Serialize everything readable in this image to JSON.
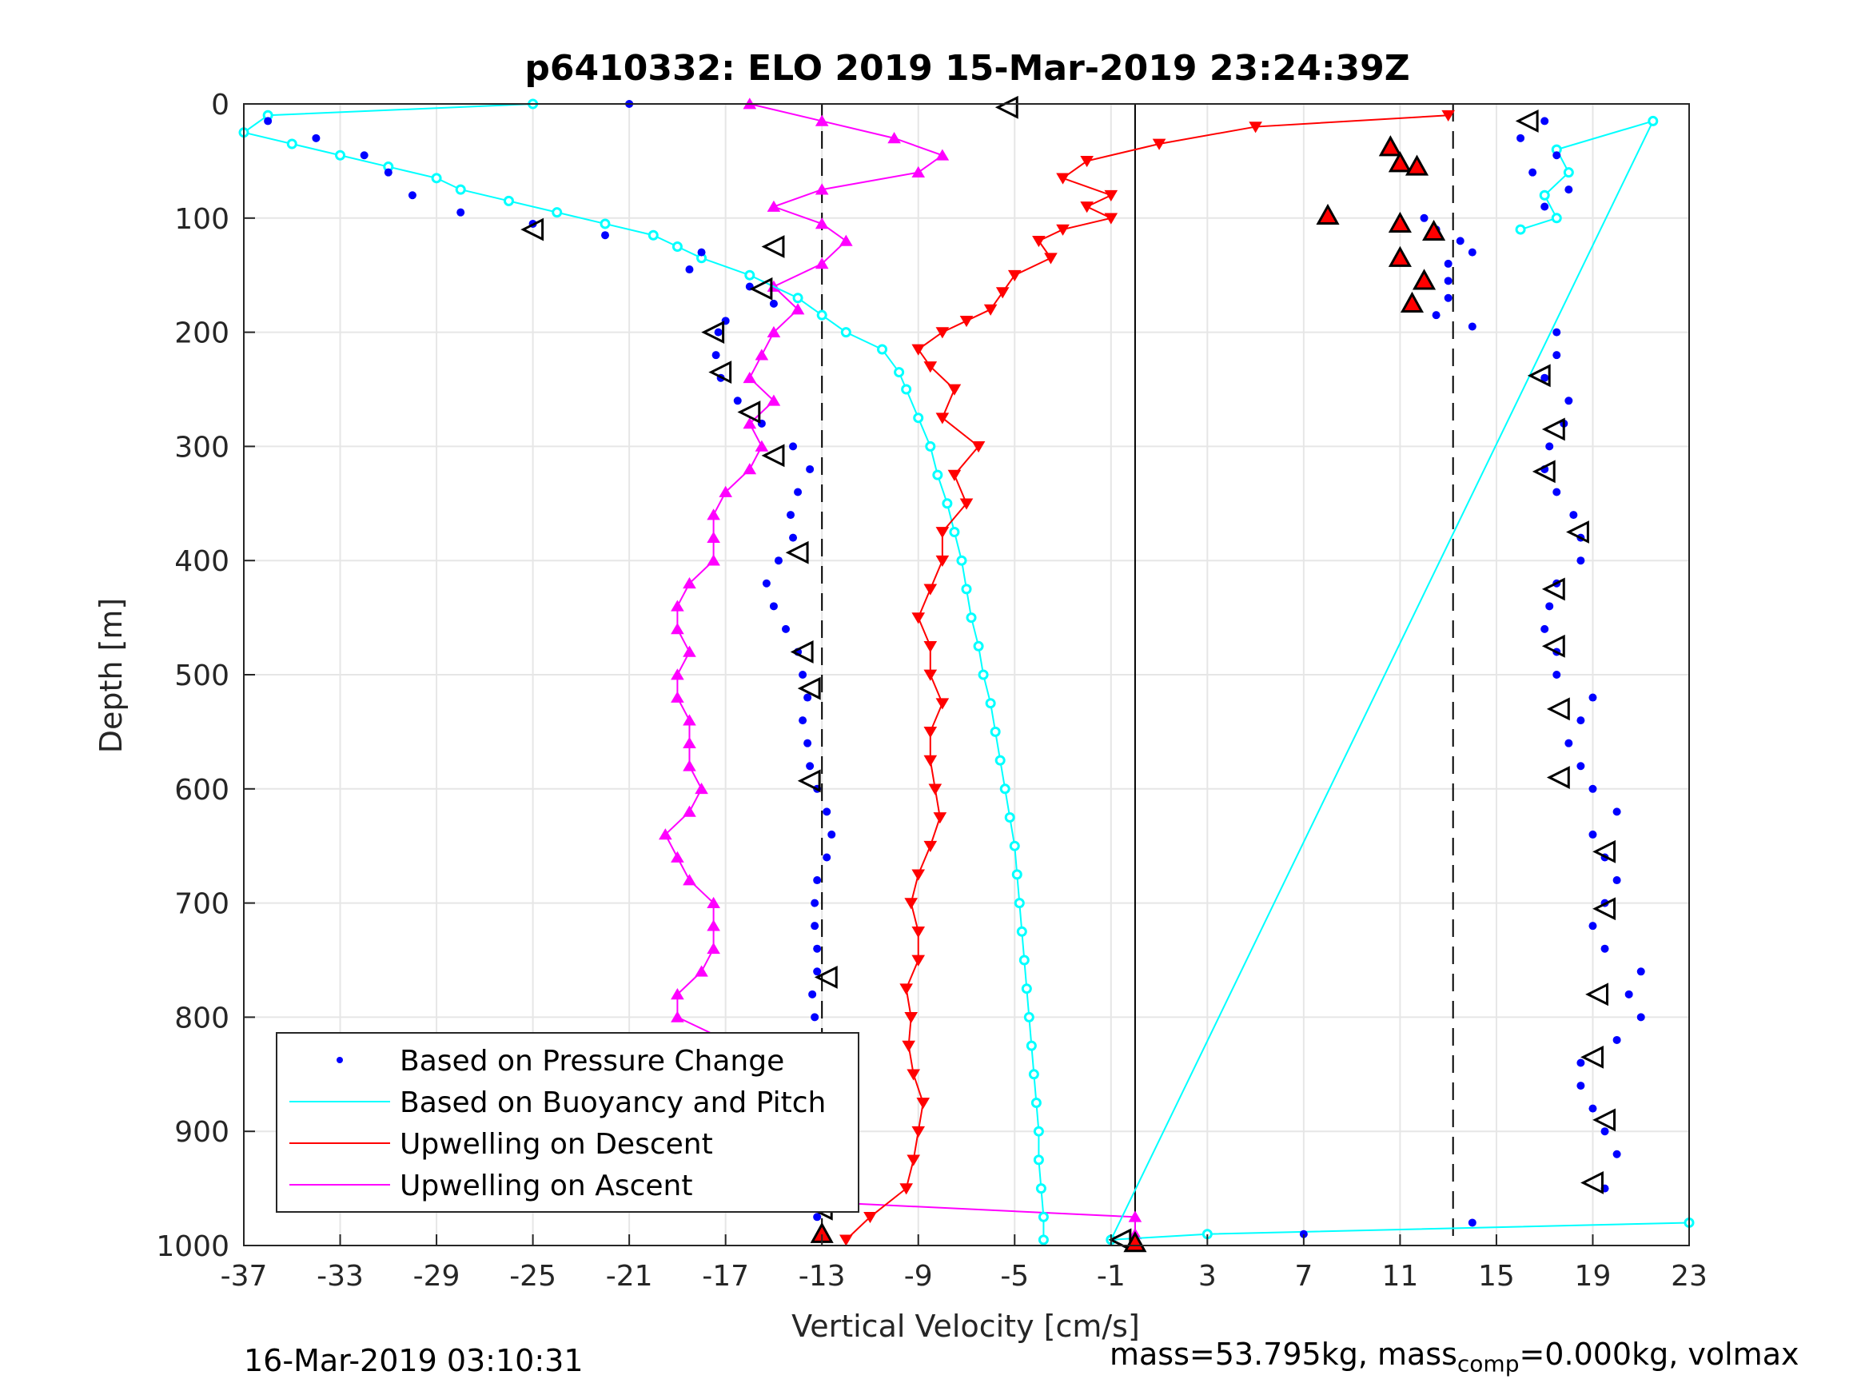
{
  "chart_data": {
    "type": "scatter",
    "title": "p6410332: ELO 2019 15-Mar-2019 23:24:39Z",
    "xlabel": "Vertical Velocity [cm/s]",
    "ylabel": "Depth [m]",
    "xlim": [
      -37,
      23
    ],
    "ylim": [
      0,
      1000
    ],
    "y_reversed": true,
    "xticks": [
      -37,
      -33,
      -29,
      -25,
      -21,
      -17,
      -13,
      -9,
      -5,
      -1,
      3,
      7,
      11,
      15,
      19,
      23
    ],
    "yticks": [
      0,
      100,
      200,
      300,
      400,
      500,
      600,
      700,
      800,
      900,
      1000
    ],
    "grid": true,
    "legend_position": "bottom-left",
    "vertical_lines": [
      {
        "x": -13,
        "style": "dashed"
      },
      {
        "x": 0,
        "style": "solid"
      },
      {
        "x": 13.2,
        "style": "dashed"
      }
    ],
    "series": [
      {
        "name": "Based on Pressure Change",
        "color": "#0000ff",
        "marker": "dot",
        "descent": {
          "depth": [
            0,
            15,
            30,
            45,
            60,
            80,
            95,
            105,
            115,
            130,
            145,
            160,
            175,
            190,
            200,
            220,
            240,
            260,
            280,
            300,
            320,
            340,
            360,
            380,
            400,
            420,
            440,
            460,
            480,
            500,
            520,
            540,
            560,
            580,
            600,
            620,
            640,
            660,
            680,
            700,
            720,
            740,
            760,
            780,
            800,
            820,
            840,
            860,
            880,
            900,
            920,
            940,
            960,
            975,
            990
          ],
          "velocity": [
            -21,
            -36,
            -34,
            -32,
            -31,
            -30,
            -28,
            -25,
            -22,
            -18,
            -18.5,
            -16,
            -15,
            -17,
            -17.3,
            -17.4,
            -17.2,
            -16.5,
            -15.5,
            -14.2,
            -13.5,
            -14,
            -14.3,
            -14.2,
            -14.8,
            -15.3,
            -15,
            -14.5,
            -14,
            -13.8,
            -13.6,
            -13.8,
            -13.6,
            -13.5,
            -13.2,
            -12.8,
            -12.6,
            -12.8,
            -13.2,
            -13.3,
            -13.3,
            -13.2,
            -13.2,
            -13.4,
            -13.3,
            -13.3,
            -13,
            -12.5,
            -12.4,
            -12.5,
            -12.4,
            -12.6,
            -13,
            -13.2,
            -13
          ]
        },
        "ascent": {
          "depth": [
            990,
            980,
            950,
            920,
            900,
            880,
            860,
            840,
            820,
            800,
            780,
            760,
            740,
            720,
            700,
            680,
            660,
            640,
            620,
            600,
            580,
            560,
            540,
            520,
            500,
            480,
            460,
            440,
            420,
            400,
            380,
            360,
            340,
            320,
            300,
            280,
            260,
            240,
            220,
            200,
            195,
            185,
            170,
            155,
            140,
            130,
            120,
            110,
            100,
            90,
            75,
            60,
            45,
            30,
            15
          ],
          "velocity": [
            7,
            14,
            19.5,
            20,
            19.5,
            19,
            18.5,
            18.5,
            20,
            21,
            20.5,
            21,
            19.5,
            19,
            19.5,
            20,
            19.5,
            19,
            20,
            19,
            18.5,
            18,
            18.5,
            19,
            17.5,
            17.5,
            17,
            17.2,
            17.5,
            18.5,
            18.5,
            18.2,
            17.5,
            17,
            17.2,
            17.8,
            18,
            17,
            17.5,
            17.5,
            14,
            12.5,
            13,
            13,
            13,
            14,
            13.5,
            12.5,
            12,
            17,
            18,
            16.5,
            17.5,
            16,
            17
          ]
        }
      },
      {
        "name": "Based on Buoyancy and Pitch",
        "color": "#00ffff",
        "marker": "open-circle",
        "descent": {
          "depth": [
            0,
            10,
            25,
            35,
            45,
            55,
            65,
            75,
            85,
            95,
            105,
            115,
            125,
            135,
            150,
            170,
            185,
            200,
            215,
            235,
            250,
            275,
            300,
            325,
            350,
            375,
            400,
            425,
            450,
            475,
            500,
            525,
            550,
            575,
            600,
            625,
            650,
            675,
            700,
            725,
            750,
            775,
            800,
            825,
            850,
            875,
            900,
            925,
            950,
            975,
            995
          ],
          "velocity": [
            -25,
            -36,
            -37,
            -35,
            -33,
            -31,
            -29,
            -28,
            -26,
            -24,
            -22,
            -20,
            -19,
            -18,
            -16,
            -14,
            -13,
            -12,
            -10.5,
            -9.8,
            -9.5,
            -9,
            -8.5,
            -8.2,
            -7.8,
            -7.5,
            -7.2,
            -7,
            -6.8,
            -6.5,
            -6.3,
            -6,
            -5.8,
            -5.6,
            -5.4,
            -5.2,
            -5,
            -4.9,
            -4.8,
            -4.7,
            -4.6,
            -4.5,
            -4.4,
            -4.3,
            -4.2,
            -4.1,
            -4,
            -4,
            -3.9,
            -3.8,
            -3.8
          ]
        },
        "ascent": {
          "depth": [
            980,
            990,
            995,
            15,
            40,
            60,
            80,
            100,
            110
          ],
          "velocity": [
            23,
            3,
            -1,
            21.5,
            17.5,
            18,
            17,
            17.5,
            16
          ]
        }
      },
      {
        "name": "Upwelling on Descent",
        "color": "#ff0000",
        "marker": "triangle-down",
        "depth": [
          10,
          20,
          35,
          50,
          65,
          80,
          90,
          100,
          110,
          120,
          135,
          150,
          165,
          180,
          190,
          200,
          215,
          230,
          250,
          275,
          300,
          325,
          350,
          375,
          400,
          425,
          450,
          475,
          500,
          525,
          550,
          575,
          600,
          625,
          650,
          675,
          700,
          725,
          750,
          775,
          800,
          825,
          850,
          875,
          900,
          925,
          950,
          975,
          995
        ],
        "velocity": [
          13,
          5,
          1,
          -2,
          -3,
          -1,
          -2,
          -1,
          -3,
          -4,
          -3.5,
          -5,
          -5.5,
          -6,
          -7,
          -8,
          -9,
          -8.5,
          -7.5,
          -8,
          -6.5,
          -7.5,
          -7,
          -8,
          -8,
          -8.5,
          -9,
          -8.5,
          -8.5,
          -8,
          -8.5,
          -8.5,
          -8.3,
          -8.1,
          -8.5,
          -9,
          -9.3,
          -9,
          -9,
          -9.5,
          -9.3,
          -9.4,
          -9.2,
          -8.8,
          -9,
          -9.2,
          -9.5,
          -11,
          -12
        ]
      },
      {
        "name": "Upwelling on Ascent",
        "color": "#ff00ff",
        "marker": "triangle-up",
        "depth": [
          0,
          15,
          30,
          45,
          60,
          75,
          90,
          105,
          120,
          140,
          160,
          180,
          200,
          220,
          240,
          260,
          280,
          300,
          320,
          340,
          360,
          380,
          400,
          420,
          440,
          460,
          480,
          500,
          520,
          540,
          560,
          580,
          600,
          620,
          640,
          660,
          680,
          700,
          720,
          740,
          760,
          780,
          800,
          820,
          840,
          860,
          880,
          900,
          920,
          940,
          960,
          975,
          990
        ],
        "velocity": [
          -16,
          -13,
          -10,
          -8,
          -9,
          -13,
          -15,
          -13,
          -12,
          -13,
          -15,
          -14,
          -15,
          -15.5,
          -16,
          -15,
          -16,
          -15.5,
          -16,
          -17,
          -17.5,
          -17.5,
          -17.5,
          -18.5,
          -19,
          -19,
          -18.5,
          -19,
          -19,
          -18.5,
          -18.5,
          -18.5,
          -18,
          -18.5,
          -19.5,
          -19,
          -18.5,
          -17.5,
          -17.5,
          -17.5,
          -18,
          -19,
          -19,
          -17,
          -17,
          -16.5,
          -16.2,
          -16,
          -16,
          -15.5,
          -15,
          0,
          0
        ]
      }
    ],
    "markers": {
      "open_triangles_left": {
        "color": "#000000",
        "points": [
          [
            -5.3,
            3
          ],
          [
            -25,
            110
          ],
          [
            -15,
            125
          ],
          [
            -15.5,
            162
          ],
          [
            -17.5,
            200
          ],
          [
            -17.2,
            235
          ],
          [
            -16,
            270
          ],
          [
            -15,
            308
          ],
          [
            -14,
            393
          ],
          [
            -13.8,
            480
          ],
          [
            -13.5,
            512
          ],
          [
            -13.5,
            593
          ],
          [
            -12.8,
            765
          ],
          [
            -13,
            835
          ],
          [
            -12.6,
            868
          ],
          [
            -13,
            968
          ],
          [
            16.3,
            15
          ],
          [
            16.8,
            238
          ],
          [
            17.4,
            285
          ],
          [
            17,
            322
          ],
          [
            18.4,
            375
          ],
          [
            17.4,
            425
          ],
          [
            17.4,
            475
          ],
          [
            17.6,
            530
          ],
          [
            17.6,
            590
          ],
          [
            19.5,
            655
          ],
          [
            19.5,
            705
          ],
          [
            19.2,
            780
          ],
          [
            19,
            835
          ],
          [
            19.5,
            890
          ],
          [
            19,
            945
          ],
          [
            -0.6,
            995
          ]
        ]
      },
      "filled_triangles_red": {
        "color": "#ff0000",
        "points": [
          [
            10.6,
            38
          ],
          [
            11,
            52
          ],
          [
            11.7,
            55
          ],
          [
            8,
            98
          ],
          [
            11,
            105
          ],
          [
            12.4,
            112
          ],
          [
            11,
            135
          ],
          [
            12,
            155
          ],
          [
            11.5,
            175
          ],
          [
            -13,
            990
          ],
          [
            0,
            998
          ]
        ]
      }
    }
  },
  "footer": {
    "timestamp": "16-Mar-2019 03:10:31",
    "mass_text": "mass=53.795kg, mass",
    "mass_sub": "comp",
    "mass_rest": "=0.000kg, volmax"
  }
}
